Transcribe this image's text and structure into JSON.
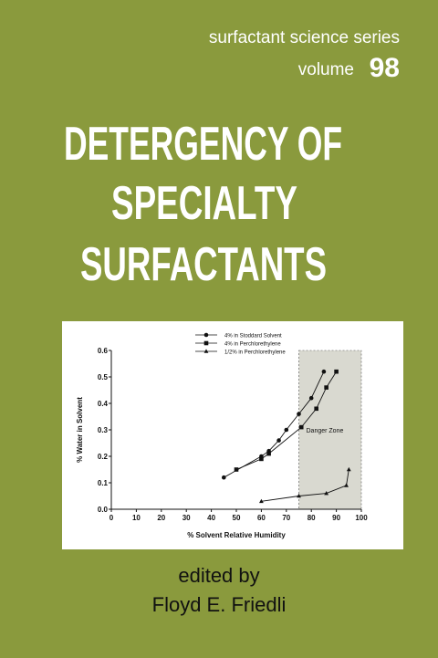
{
  "header": {
    "series": "surfactant science series",
    "volume_label": "volume",
    "volume_number": "98"
  },
  "title_lines": [
    "DETERGENCY OF",
    "SPECIALTY",
    "SURFACTANTS"
  ],
  "chart_data": {
    "type": "scatter",
    "x_label": "% Solvent Relative Humidity",
    "y_label": "% Water in Solvent",
    "xlim": [
      0,
      100
    ],
    "xticks": [
      0,
      10,
      20,
      30,
      40,
      50,
      60,
      70,
      80,
      90,
      100
    ],
    "ylim": [
      0,
      0.6
    ],
    "yticks": [
      {
        "value": 0,
        "label": "0.0"
      },
      0.1,
      0.2,
      0.3,
      0.4,
      0.5,
      0.6
    ],
    "shaded_region": {
      "label": "Danger Zone",
      "x": [
        75,
        100
      ]
    },
    "series": [
      {
        "name": "4% in Stoddard Solvent",
        "marker": "circle",
        "color": "#111111",
        "x": [
          45,
          60,
          63,
          67,
          70,
          75,
          80,
          85
        ],
        "values": [
          0.12,
          0.2,
          0.22,
          0.26,
          0.3,
          0.36,
          0.42,
          0.52
        ]
      },
      {
        "name": "4% in Perchlorethylene",
        "marker": "square",
        "color": "#111111",
        "x": [
          50,
          60,
          63,
          76,
          82,
          86,
          90
        ],
        "values": [
          0.15,
          0.19,
          0.21,
          0.31,
          0.38,
          0.46,
          0.52
        ]
      },
      {
        "name": "1/2% in Perchlorethylene",
        "marker": "triangle",
        "color": "#111111",
        "x": [
          60,
          75,
          86,
          94,
          95
        ],
        "values": [
          0.03,
          0.05,
          0.06,
          0.09,
          0.15
        ]
      }
    ]
  },
  "credits": {
    "edited_by": "edited by",
    "editor": "Floyd E. Friedli"
  }
}
